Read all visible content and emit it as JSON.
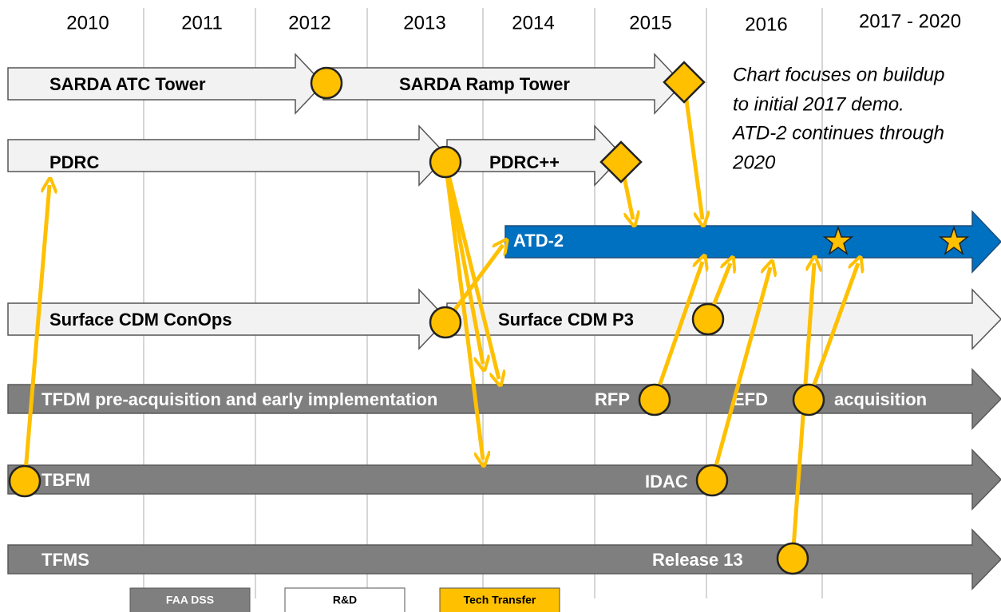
{
  "years": [
    "2010",
    "2011",
    "2012",
    "2013",
    "2014",
    "2015",
    "2016",
    "2017 - 2020"
  ],
  "tracks": [
    {
      "segments": [
        "SARDA ATC Tower",
        "SARDA Ramp Tower"
      ]
    },
    {
      "segments": [
        "PDRC",
        "PDRC++"
      ]
    },
    {
      "segments": [
        "ATD-2"
      ]
    },
    {
      "segments": [
        "Surface CDM ConOps",
        "Surface CDM P3"
      ]
    },
    {
      "segments": [
        "TFDM pre-acquisition and early implementation",
        "RFP",
        "EFD",
        "acquisition"
      ]
    },
    {
      "segments": [
        "TBFM",
        "IDAC"
      ]
    },
    {
      "segments": [
        "TFMS",
        "Release 13"
      ]
    }
  ],
  "note": [
    "Chart focuses on buildup",
    "to initial 2017 demo.",
    "ATD-2 continues through",
    "2020"
  ],
  "legend": [
    "FAA DSS",
    "R&D",
    "Tech Transfer"
  ]
}
